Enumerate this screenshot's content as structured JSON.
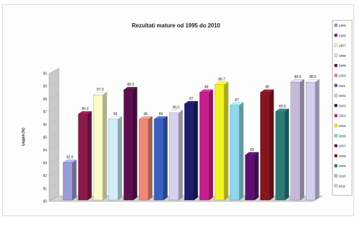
{
  "chart_data": {
    "type": "bar",
    "title": "Rezultati mature od 1995 do 2010",
    "ylabel": "Uspjeh (%)",
    "xlabel": "",
    "ylim": [
      80,
      90
    ],
    "yticks": [
      "80",
      "81",
      "82",
      "83",
      "84",
      "85",
      "86",
      "87",
      "88",
      "89",
      "90"
    ],
    "legend_position": "right",
    "categories": [
      "1995",
      "1996",
      "1997",
      "1998",
      "1999",
      "2000",
      "2001",
      "2002",
      "2003",
      "2004",
      "2005",
      "2006",
      "2007",
      "2008",
      "2009",
      "2010",
      "2011"
    ],
    "values": [
      82.6,
      86.4,
      87.9,
      86,
      88.3,
      86,
      86,
      86.5,
      87.2,
      88.1,
      88.7,
      87.1,
      83.2,
      88.1,
      86.6,
      88.9,
      88.9
    ],
    "data_labels": [
      "82.6",
      "86.4",
      "87.9",
      "86",
      "88.3",
      "86",
      "86",
      "86.5",
      "87",
      "88",
      "88.7",
      "87",
      "83",
      "88",
      "86.6",
      "88.9",
      "88.9"
    ],
    "colors": [
      "#9b9bd6",
      "#8a1a4c",
      "#fbfbc8",
      "#d0eef8",
      "#5c0f4d",
      "#f08878",
      "#3a5fbf",
      "#d6d2ee",
      "#1e1e6e",
      "#c51f8e",
      "#f3f324",
      "#8fd8ea",
      "#5c1170",
      "#871620",
      "#2d7b78",
      "#c2bad8",
      "#d0d0f0"
    ]
  }
}
